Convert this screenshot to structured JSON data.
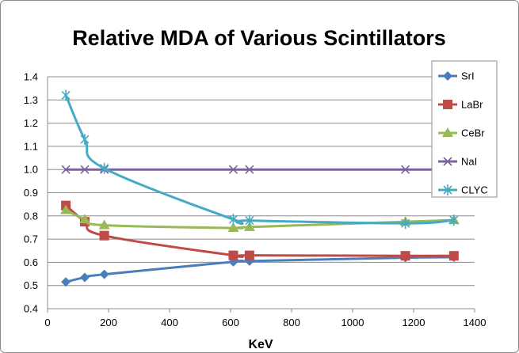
{
  "chart_data": {
    "type": "line",
    "title": "Relative MDA of Various Scintillators",
    "xlabel": "KeV",
    "ylabel": "",
    "xlim": [
      0,
      1400
    ],
    "ylim": [
      0.4,
      1.4
    ],
    "x_ticks": [
      "0",
      "200",
      "400",
      "600",
      "800",
      "1000",
      "1200",
      "1400"
    ],
    "y_ticks": [
      "0.4",
      "0.5",
      "0.6",
      "0.7",
      "0.8",
      "0.9",
      "1.0",
      "1.1",
      "1.2",
      "1.3",
      "1.4"
    ],
    "grid": "horizontal",
    "legend_position": "right",
    "series": [
      {
        "name": "SrI",
        "color": "#4a7ebb",
        "marker": "diamond",
        "x": [
          60,
          122,
          186,
          609,
          662,
          1173,
          1332
        ],
        "y": [
          0.515,
          0.535,
          0.548,
          0.602,
          0.605,
          0.62,
          0.622
        ]
      },
      {
        "name": "LaBr",
        "color": "#be4b48",
        "marker": "square",
        "x": [
          60,
          122,
          186,
          609,
          662,
          1173,
          1332
        ],
        "y": [
          0.845,
          0.775,
          0.715,
          0.63,
          0.63,
          0.628,
          0.628
        ]
      },
      {
        "name": "CeBr",
        "color": "#98b954",
        "marker": "triangle",
        "x": [
          60,
          122,
          186,
          609,
          662,
          1173,
          1332
        ],
        "y": [
          0.825,
          0.785,
          0.76,
          0.748,
          0.752,
          0.775,
          0.782
        ]
      },
      {
        "name": "NaI",
        "color": "#7d60a0",
        "marker": "x",
        "x": [
          60,
          122,
          186,
          609,
          662,
          1173,
          1332
        ],
        "y": [
          1.0,
          1.0,
          1.0,
          1.0,
          1.0,
          1.0,
          1.0
        ]
      },
      {
        "name": "CLYC",
        "color": "#46aac5",
        "marker": "star",
        "x": [
          60,
          122,
          186,
          609,
          662,
          1173,
          1332
        ],
        "y": [
          1.32,
          1.13,
          1.005,
          0.785,
          0.78,
          0.768,
          0.782
        ]
      }
    ]
  }
}
